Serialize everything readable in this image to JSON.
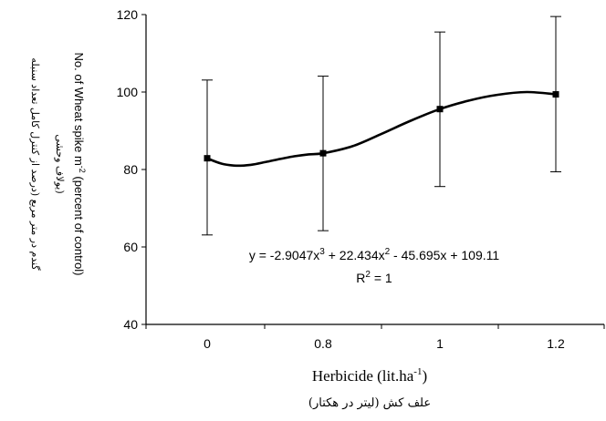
{
  "chart_data": {
    "type": "scatter",
    "x_categories": [
      "0",
      "0.8",
      "1",
      "1.2"
    ],
    "series": [
      {
        "x": [
          0,
          0.8,
          1,
          1.2
        ],
        "y": [
          82.9,
          84.2,
          95.6,
          99.4
        ],
        "error_low": [
          63.1,
          64.2,
          75.6,
          79.4
        ],
        "error_high": [
          103.1,
          104.1,
          115.5,
          119.5
        ]
      }
    ],
    "trendline": {
      "equation_text": "y = -2.9047x3 + 22.434x2 - 45.695x + 109.11",
      "equation_parts": {
        "a": "y = -2.9047x",
        "e3": "3",
        "b": " + 22.434x",
        "e2": "2",
        "c": " - 45.695x + 109.11"
      },
      "r2_text": "R2 = 1",
      "r2_parts": {
        "a": "R",
        "e": "2",
        "b": " = 1"
      },
      "values": [
        {
          "x": 0,
          "y": 82.9
        },
        {
          "x": 0.1,
          "y": 81.5
        },
        {
          "x": 0.2,
          "y": 81.0
        },
        {
          "x": 0.3,
          "y": 81.2
        },
        {
          "x": 0.4,
          "y": 81.9
        },
        {
          "x": 0.5,
          "y": 82.7
        },
        {
          "x": 0.6,
          "y": 83.4
        },
        {
          "x": 0.7,
          "y": 83.9
        },
        {
          "x": 0.8,
          "y": 84.2
        },
        {
          "x": 0.85,
          "y": 86.0
        },
        {
          "x": 0.9,
          "y": 89.2
        },
        {
          "x": 0.95,
          "y": 92.6
        },
        {
          "x": 1.0,
          "y": 95.6
        },
        {
          "x": 1.05,
          "y": 97.8
        },
        {
          "x": 1.1,
          "y": 99.3
        },
        {
          "x": 1.15,
          "y": 100.0
        },
        {
          "x": 1.2,
          "y": 99.4
        }
      ]
    },
    "y_ticks": [
      40,
      60,
      80,
      100,
      120
    ],
    "ylim": [
      40,
      120
    ],
    "xlabel_main": "Herbicide (lit.ha-1)",
    "xlabel_parts": {
      "a": "Herbicide (lit.ha",
      "sup": "-1",
      "b": ")"
    },
    "xlabel_fa": "علف کش (لیتر در هکتار)",
    "ylabel_fa_line1": "گندم در متر مربع (درصد از کنترل کامل تعداد سنبله",
    "ylabel_fa_line2": "یولاف وحشی)",
    "ylabel_en": "No. of Wheat spike m-2 (percent of control)",
    "ylabel_en_parts": {
      "a": "No. of Wheat spike m",
      "sup": "-2",
      "b": " (percent of control)"
    },
    "grid": false,
    "legend": "none",
    "colors": {
      "marker": "#000000",
      "line": "#000000",
      "axis": "#000000"
    }
  }
}
